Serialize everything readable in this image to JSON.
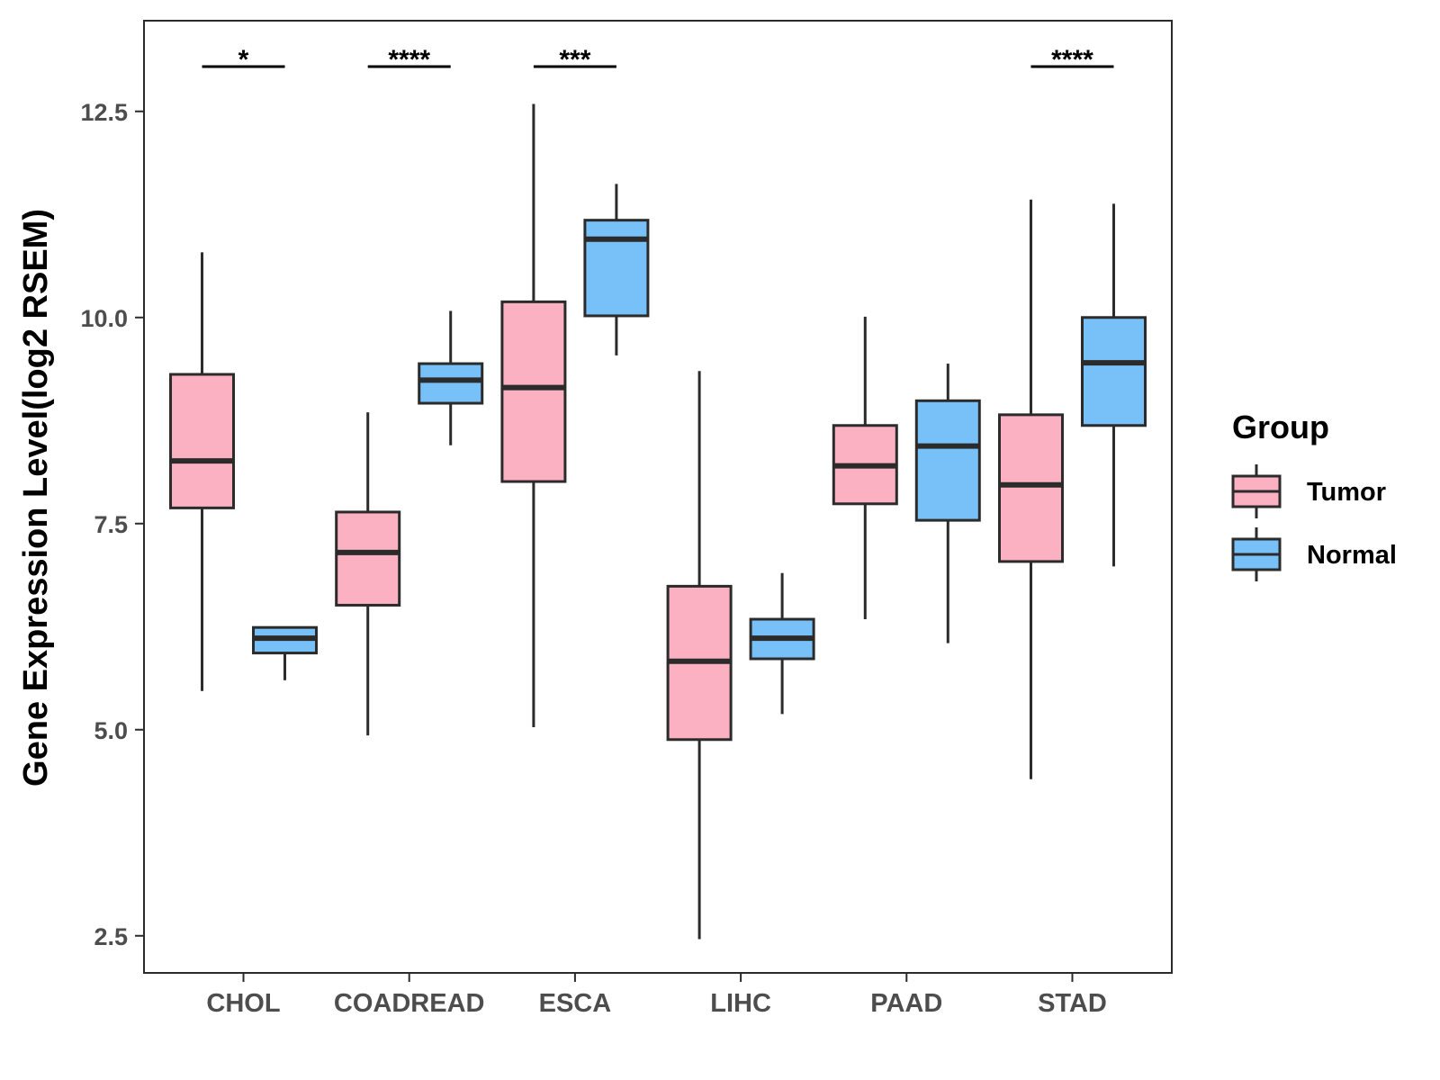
{
  "chart_data": {
    "type": "boxplot",
    "title": "",
    "xlabel": "",
    "ylabel": "Gene Expression Level(log2 RSEM)",
    "ylim": [
      2.05,
      13.6
    ],
    "yticks": [
      "2.5",
      "5.0",
      "7.5",
      "10.0",
      "12.5"
    ],
    "categories": [
      "CHOL",
      "COADREAD",
      "ESCA",
      "LIHC",
      "PAAD",
      "STAD"
    ],
    "significance": [
      "*",
      "****",
      "***",
      "",
      "",
      "****"
    ],
    "legend": {
      "title": "Group",
      "position": "right"
    },
    "colors": {
      "Tumor": "#fbb1c2",
      "Normal": "#78c1f8",
      "outline": "#2b2b2b"
    },
    "series": [
      {
        "name": "Tumor",
        "boxes": [
          {
            "min": 5.47,
            "q1": 7.69,
            "median": 8.26,
            "q3": 9.31,
            "max": 10.79
          },
          {
            "min": 4.93,
            "q1": 6.51,
            "median": 7.15,
            "q3": 7.64,
            "max": 8.85
          },
          {
            "min": 5.03,
            "q1": 8.01,
            "median": 9.15,
            "q3": 10.19,
            "max": 12.59
          },
          {
            "min": 2.46,
            "q1": 4.88,
            "median": 5.83,
            "q3": 6.74,
            "max": 9.35
          },
          {
            "min": 6.34,
            "q1": 7.74,
            "median": 8.2,
            "q3": 8.69,
            "max": 10.01
          },
          {
            "min": 4.4,
            "q1": 7.04,
            "median": 7.97,
            "q3": 8.82,
            "max": 11.43
          }
        ]
      },
      {
        "name": "Normal",
        "boxes": [
          {
            "min": 5.6,
            "q1": 5.93,
            "median": 6.11,
            "q3": 6.24,
            "max": 6.24
          },
          {
            "min": 8.45,
            "q1": 8.96,
            "median": 9.24,
            "q3": 9.44,
            "max": 10.08
          },
          {
            "min": 9.54,
            "q1": 10.02,
            "median": 10.95,
            "q3": 11.18,
            "max": 11.62
          },
          {
            "min": 5.19,
            "q1": 5.86,
            "median": 6.11,
            "q3": 6.34,
            "max": 6.9
          },
          {
            "min": 6.05,
            "q1": 7.54,
            "median": 8.44,
            "q3": 8.99,
            "max": 9.44
          },
          {
            "min": 6.98,
            "q1": 8.69,
            "median": 9.45,
            "q3": 10.0,
            "max": 11.38
          }
        ]
      }
    ]
  }
}
